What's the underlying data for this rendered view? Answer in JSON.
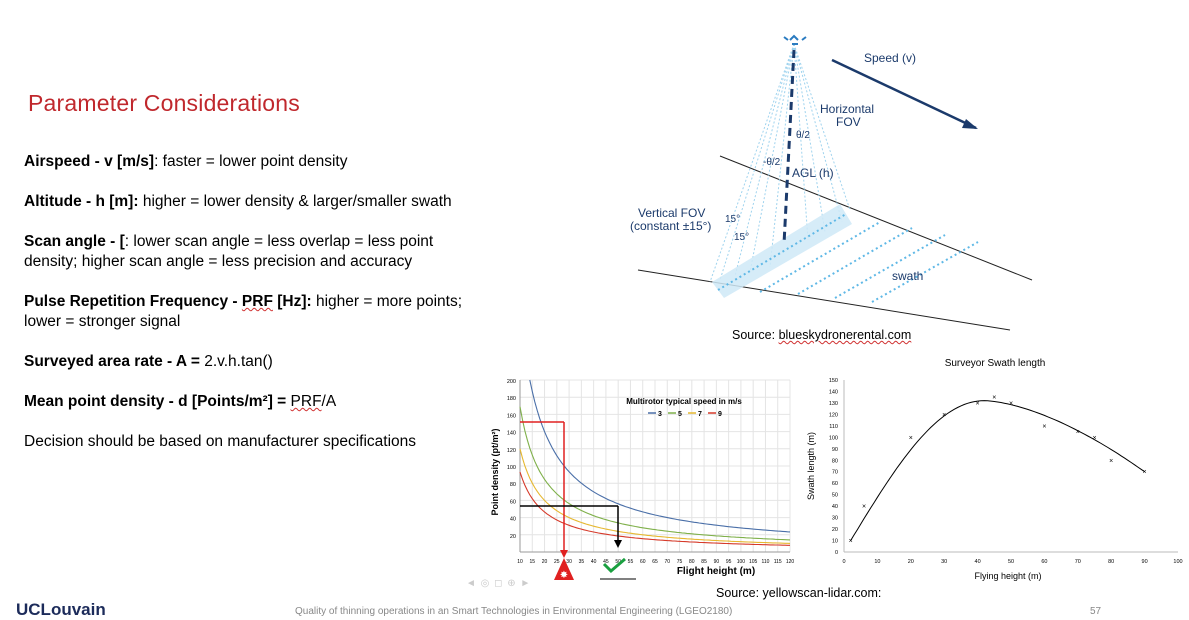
{
  "title": "Parameter Considerations",
  "bullets": [
    {
      "bold": "Airspeed - v [m/s]",
      "rest": ": faster = lower point density"
    },
    {
      "bold": "Altitude - h [m]:",
      "rest": " higher = lower density & larger/smaller swath"
    },
    {
      "bold": "Scan angle -  [",
      "rest": ": lower scan angle = less overlap = less point density; higher scan angle = less precision and accuracy"
    },
    {
      "bold": "Pulse Repetition Frequency - ",
      "bold_sq": "PRF",
      "bold2": " [Hz]:",
      "rest": " higher = more points; lower = stronger signal"
    },
    {
      "bold": "Surveyed area rate - A = ",
      "rest": "2.v.h.tan()"
    },
    {
      "bold": "Mean point density - d [Points/m²] = ",
      "rest_sq": "PRF",
      "rest": "/A"
    },
    {
      "bold": "",
      "rest": "Decision should be based on manufacturer specifications"
    }
  ],
  "diagram": {
    "speed": "Speed (v)",
    "hfov_line1": "Horizontal",
    "hfov_line2": "FOV",
    "theta_half": "θ/2",
    "theta_half_neg": "-θ/2",
    "agl": "AGL (h)",
    "vfov_line1": "Vertical FOV",
    "vfov_line2": "(constant ±15°)",
    "deg15a": "15°",
    "deg15b": "15°",
    "swath": "swath",
    "source_prefix": "Source: ",
    "source_sq": "blueskydronerental.com"
  },
  "chart_density": {
    "ylabel": "Point density (pt/m²)",
    "xlabel": "Flight height (m)",
    "legend_title": "Multirotor typical speed in m/s",
    "series_names": [
      "3",
      "5",
      "7",
      "9"
    ],
    "yticks": [
      "200",
      "180",
      "160",
      "140",
      "120",
      "100",
      "80",
      "60",
      "40",
      "20"
    ],
    "xticks": [
      "10",
      "15",
      "20",
      "25",
      "30",
      "35",
      "40",
      "45",
      "50",
      "55",
      "60",
      "65",
      "70",
      "75",
      "80",
      "85",
      "90",
      "95",
      "100",
      "105",
      "110",
      "115",
      "120"
    ],
    "colors": [
      "#4a6fa8",
      "#7fb04a",
      "#e6b830",
      "#d63a2a"
    ]
  },
  "chart_swath": {
    "chart_data": {
      "type": "line",
      "title": "Surveyor Swath length",
      "xlabel": "Flying height (m)",
      "ylabel": "Swath length (m)",
      "xlim": [
        0,
        100
      ],
      "ylim": [
        0,
        150
      ],
      "x": [
        2,
        6,
        20,
        30,
        40,
        45,
        50,
        60,
        70,
        75,
        80,
        90
      ],
      "y": [
        10,
        40,
        100,
        120,
        130,
        135,
        130,
        110,
        105,
        100,
        80,
        70
      ],
      "xticks": [
        "0",
        "10",
        "20",
        "30",
        "40",
        "50",
        "60",
        "70",
        "80",
        "90",
        "100"
      ],
      "yticks": [
        "0",
        "10",
        "20",
        "30",
        "40",
        "50",
        "60",
        "70",
        "80",
        "90",
        "100",
        "110",
        "120",
        "130",
        "140",
        "150"
      ]
    }
  },
  "source2": "Source: yellowscan-lidar.com:",
  "footer": {
    "logo": "UCLouvain",
    "text": "Quality of thinning operations in an Smart Technologies in Environmental Engineering (LGEO2180)",
    "page": "57"
  }
}
